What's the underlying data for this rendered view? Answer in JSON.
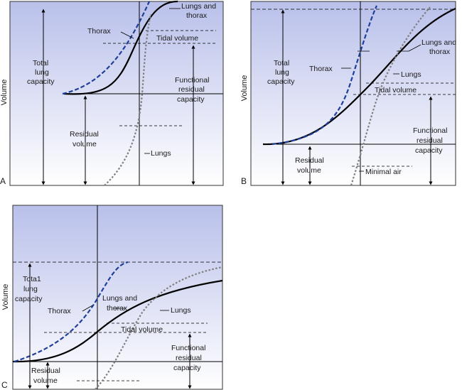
{
  "colors": {
    "panel_top": "#b9c0ea",
    "panel_bottom": "#ffffff",
    "lungs_thorax_curve": "#000000",
    "thorax_curve": "#1f3f9a",
    "lungs_curve": "#7f7f7f"
  },
  "panels": [
    {
      "letter": "A",
      "y_axis_label": "Volume",
      "labels": {
        "lungs_thorax": [
          "Lungs and",
          "thorax"
        ],
        "thorax": "Thorax",
        "tidal": "Tidal volume",
        "tlc": [
          "Total",
          "lung",
          "capacity"
        ],
        "frc": [
          "Functional",
          "residual",
          "capacity"
        ],
        "rv": [
          "Residual",
          "volume"
        ],
        "lungs": "Lungs"
      }
    },
    {
      "letter": "B",
      "y_axis_label": "Volume",
      "labels": {
        "tlc": [
          "Total",
          "lung",
          "capacity"
        ],
        "thorax": "Thorax",
        "lungs": "Lungs",
        "lungs_thorax": [
          "Lungs and",
          "thorax"
        ],
        "tidal": "Tidal volume",
        "frc": [
          "Functional",
          "residual",
          "capacity"
        ],
        "rv": [
          "Residual",
          "volume"
        ],
        "minimal": "Minimal air"
      }
    },
    {
      "letter": "C",
      "y_axis_label": "Volume",
      "labels": {
        "tlc": [
          "Tota1",
          "lung",
          "capacity"
        ],
        "thorax": "Thorax",
        "lungs_thorax": [
          "Lungs and",
          "thorax"
        ],
        "lungs": "Lungs",
        "tidal": "Tidal volume",
        "frc": [
          "Functional",
          "residual",
          "capacity"
        ],
        "rv": [
          "Residual",
          "volume"
        ]
      }
    }
  ]
}
